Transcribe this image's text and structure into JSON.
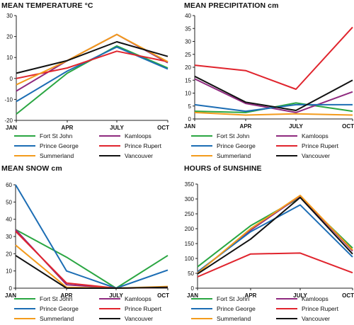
{
  "chart_data": [
    {
      "type": "line",
      "title": "MEAN TEMPERATURE °C",
      "categories": [
        "JAN",
        "APR",
        "JULY",
        "OCT"
      ],
      "ylim": [
        -20,
        30
      ],
      "yticks": [
        -20,
        -10,
        0,
        10,
        20,
        30
      ],
      "grid": false,
      "legend_position": "bottom",
      "series": [
        {
          "name": "Fort St John",
          "color": "#2aa642",
          "values": [
            -17,
            2.5,
            15.5,
            5
          ]
        },
        {
          "name": "Kamloops",
          "color": "#8f2a7f",
          "values": [
            -6,
            8.5,
            21,
            7.5
          ]
        },
        {
          "name": "Prince George",
          "color": "#1c6db4",
          "values": [
            -11,
            3.5,
            15,
            4.5
          ]
        },
        {
          "name": "Prince Rupert",
          "color": "#e0242d",
          "values": [
            0,
            5,
            13,
            8
          ]
        },
        {
          "name": "Summerland",
          "color": "#f39b1c",
          "values": [
            -3,
            8.5,
            21,
            8
          ]
        },
        {
          "name": "Vancouver",
          "color": "#111111",
          "values": [
            2.5,
            8.5,
            17.5,
            10.5
          ]
        }
      ]
    },
    {
      "type": "line",
      "title": "MEAN PRECIPITATION cm",
      "categories": [
        "JAN",
        "APR",
        "JULY",
        "OCT"
      ],
      "ylim": [
        0,
        40
      ],
      "yticks": [
        0,
        5,
        10,
        15,
        20,
        25,
        30,
        35,
        40
      ],
      "grid": false,
      "legend_position": "bottom",
      "series": [
        {
          "name": "Fort St John",
          "color": "#2aa642",
          "values": [
            3,
            2.5,
            6.2,
            3
          ]
        },
        {
          "name": "Kamloops",
          "color": "#8f2a7f",
          "values": [
            15.5,
            6,
            2.5,
            10.5
          ]
        },
        {
          "name": "Prince George",
          "color": "#1c6db4",
          "values": [
            5.5,
            3,
            5.5,
            5.5
          ]
        },
        {
          "name": "Prince Rupert",
          "color": "#e0242d",
          "values": [
            20.8,
            18.7,
            11.5,
            35.5
          ]
        },
        {
          "name": "Summerland",
          "color": "#f39b1c",
          "values": [
            2.5,
            1.5,
            2,
            1.5
          ]
        },
        {
          "name": "Vancouver",
          "color": "#111111",
          "values": [
            16.5,
            6.5,
            3.3,
            15
          ]
        }
      ]
    },
    {
      "type": "line",
      "title": "MEAN SNOW cm",
      "categories": [
        "JAN",
        "APR",
        "JULY",
        "OCT"
      ],
      "ylim": [
        0,
        60
      ],
      "yticks": [
        0,
        10,
        20,
        30,
        40,
        50,
        60
      ],
      "grid": false,
      "legend_position": "bottom",
      "series": [
        {
          "name": "Fort St John",
          "color": "#2aa642",
          "values": [
            34,
            18,
            0,
            19
          ]
        },
        {
          "name": "Kamloops",
          "color": "#8f2a7f",
          "values": [
            34,
            2,
            0,
            0.5
          ]
        },
        {
          "name": "Prince George",
          "color": "#1c6db4",
          "values": [
            60,
            10,
            0,
            10.5
          ]
        },
        {
          "name": "Prince Rupert",
          "color": "#e0242d",
          "values": [
            33,
            3,
            0,
            0.5
          ]
        },
        {
          "name": "Summerland",
          "color": "#f39b1c",
          "values": [
            25,
            0.5,
            0,
            1
          ]
        },
        {
          "name": "Vancouver",
          "color": "#111111",
          "values": [
            19,
            0,
            0,
            0.5
          ]
        }
      ]
    },
    {
      "type": "line",
      "title": "HOURS of SUNSHINE",
      "categories": [
        "JAN",
        "APR",
        "JULY",
        "OCT"
      ],
      "ylim": [
        0,
        350
      ],
      "yticks": [
        0,
        50,
        100,
        150,
        200,
        250,
        300,
        350
      ],
      "grid": false,
      "legend_position": "bottom",
      "series": [
        {
          "name": "Fort St John",
          "color": "#2aa642",
          "values": [
            72,
            210,
            305,
            135
          ]
        },
        {
          "name": "Kamloops",
          "color": "#8f2a7f",
          "values": [
            52,
            195,
            310,
            125
          ]
        },
        {
          "name": "Prince George",
          "color": "#1c6db4",
          "values": [
            55,
            190,
            280,
            105
          ]
        },
        {
          "name": "Prince Rupert",
          "color": "#e0242d",
          "values": [
            38,
            115,
            118,
            52
          ]
        },
        {
          "name": "Summerland",
          "color": "#f39b1c",
          "values": [
            50,
            200,
            312,
            128
          ]
        },
        {
          "name": "Vancouver",
          "color": "#111111",
          "values": [
            48,
            165,
            305,
            115
          ]
        }
      ]
    }
  ]
}
